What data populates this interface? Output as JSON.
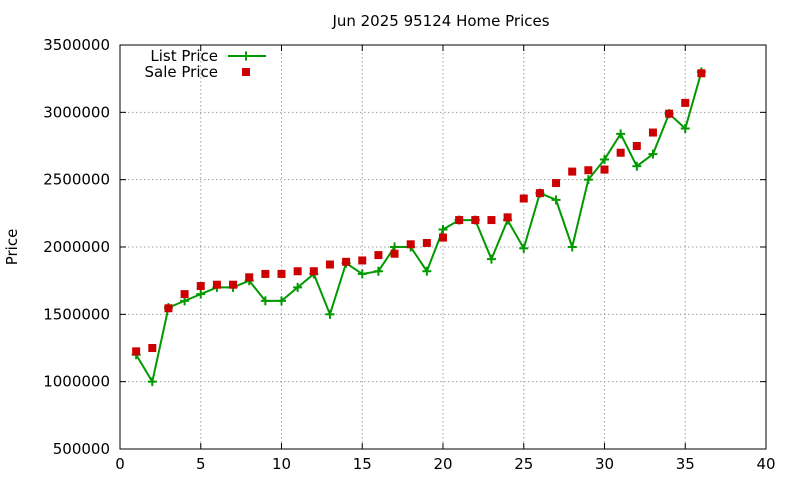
{
  "chart_data": {
    "type": "line",
    "title": "Jun 2025 95124 Home Prices",
    "xlabel": "",
    "ylabel": "Price",
    "xlim": [
      0,
      40
    ],
    "ylim": [
      500000,
      3500000
    ],
    "x_ticks": [
      0,
      5,
      10,
      15,
      20,
      25,
      30,
      35,
      40
    ],
    "y_ticks": [
      500000,
      1000000,
      1500000,
      2000000,
      2500000,
      3000000,
      3500000
    ],
    "grid": true,
    "legend_position": "top-left",
    "series": [
      {
        "name": "List Price",
        "style": "line-points",
        "marker": "plus",
        "color": "#009900",
        "x": [
          1,
          2,
          3,
          4,
          5,
          6,
          7,
          8,
          9,
          10,
          11,
          12,
          13,
          14,
          15,
          16,
          17,
          18,
          19,
          20,
          21,
          22,
          23,
          24,
          25,
          26,
          27,
          28,
          29,
          30,
          31,
          32,
          33,
          34,
          35,
          36
        ],
        "values": [
          1200000,
          1000000,
          1550000,
          1600000,
          1650000,
          1700000,
          1700000,
          1750000,
          1600000,
          1600000,
          1700000,
          1800000,
          1500000,
          1880000,
          1800000,
          1820000,
          2000000,
          2000000,
          1820000,
          2130000,
          2200000,
          2200000,
          1910000,
          2200000,
          1990000,
          2400000,
          2350000,
          2000000,
          2500000,
          2650000,
          2840000,
          2600000,
          2690000,
          2990000,
          2880000,
          3300000
        ]
      },
      {
        "name": "Sale Price",
        "style": "points",
        "marker": "square",
        "color": "#cc0000",
        "x": [
          1,
          2,
          3,
          4,
          5,
          6,
          7,
          8,
          9,
          10,
          11,
          12,
          13,
          14,
          15,
          16,
          17,
          18,
          19,
          20,
          21,
          22,
          23,
          24,
          25,
          26,
          27,
          28,
          29,
          30,
          31,
          32,
          33,
          34,
          35,
          36
        ],
        "values": [
          1225000,
          1250000,
          1545000,
          1650000,
          1710000,
          1720000,
          1720000,
          1775000,
          1800000,
          1800000,
          1820000,
          1820000,
          1870000,
          1890000,
          1900000,
          1940000,
          1950000,
          2020000,
          2030000,
          2070000,
          2200000,
          2200000,
          2200000,
          2220000,
          2360000,
          2400000,
          2475000,
          2560000,
          2570000,
          2575000,
          2700000,
          2750000,
          2850000,
          2990000,
          3070000,
          3290000
        ]
      }
    ]
  }
}
